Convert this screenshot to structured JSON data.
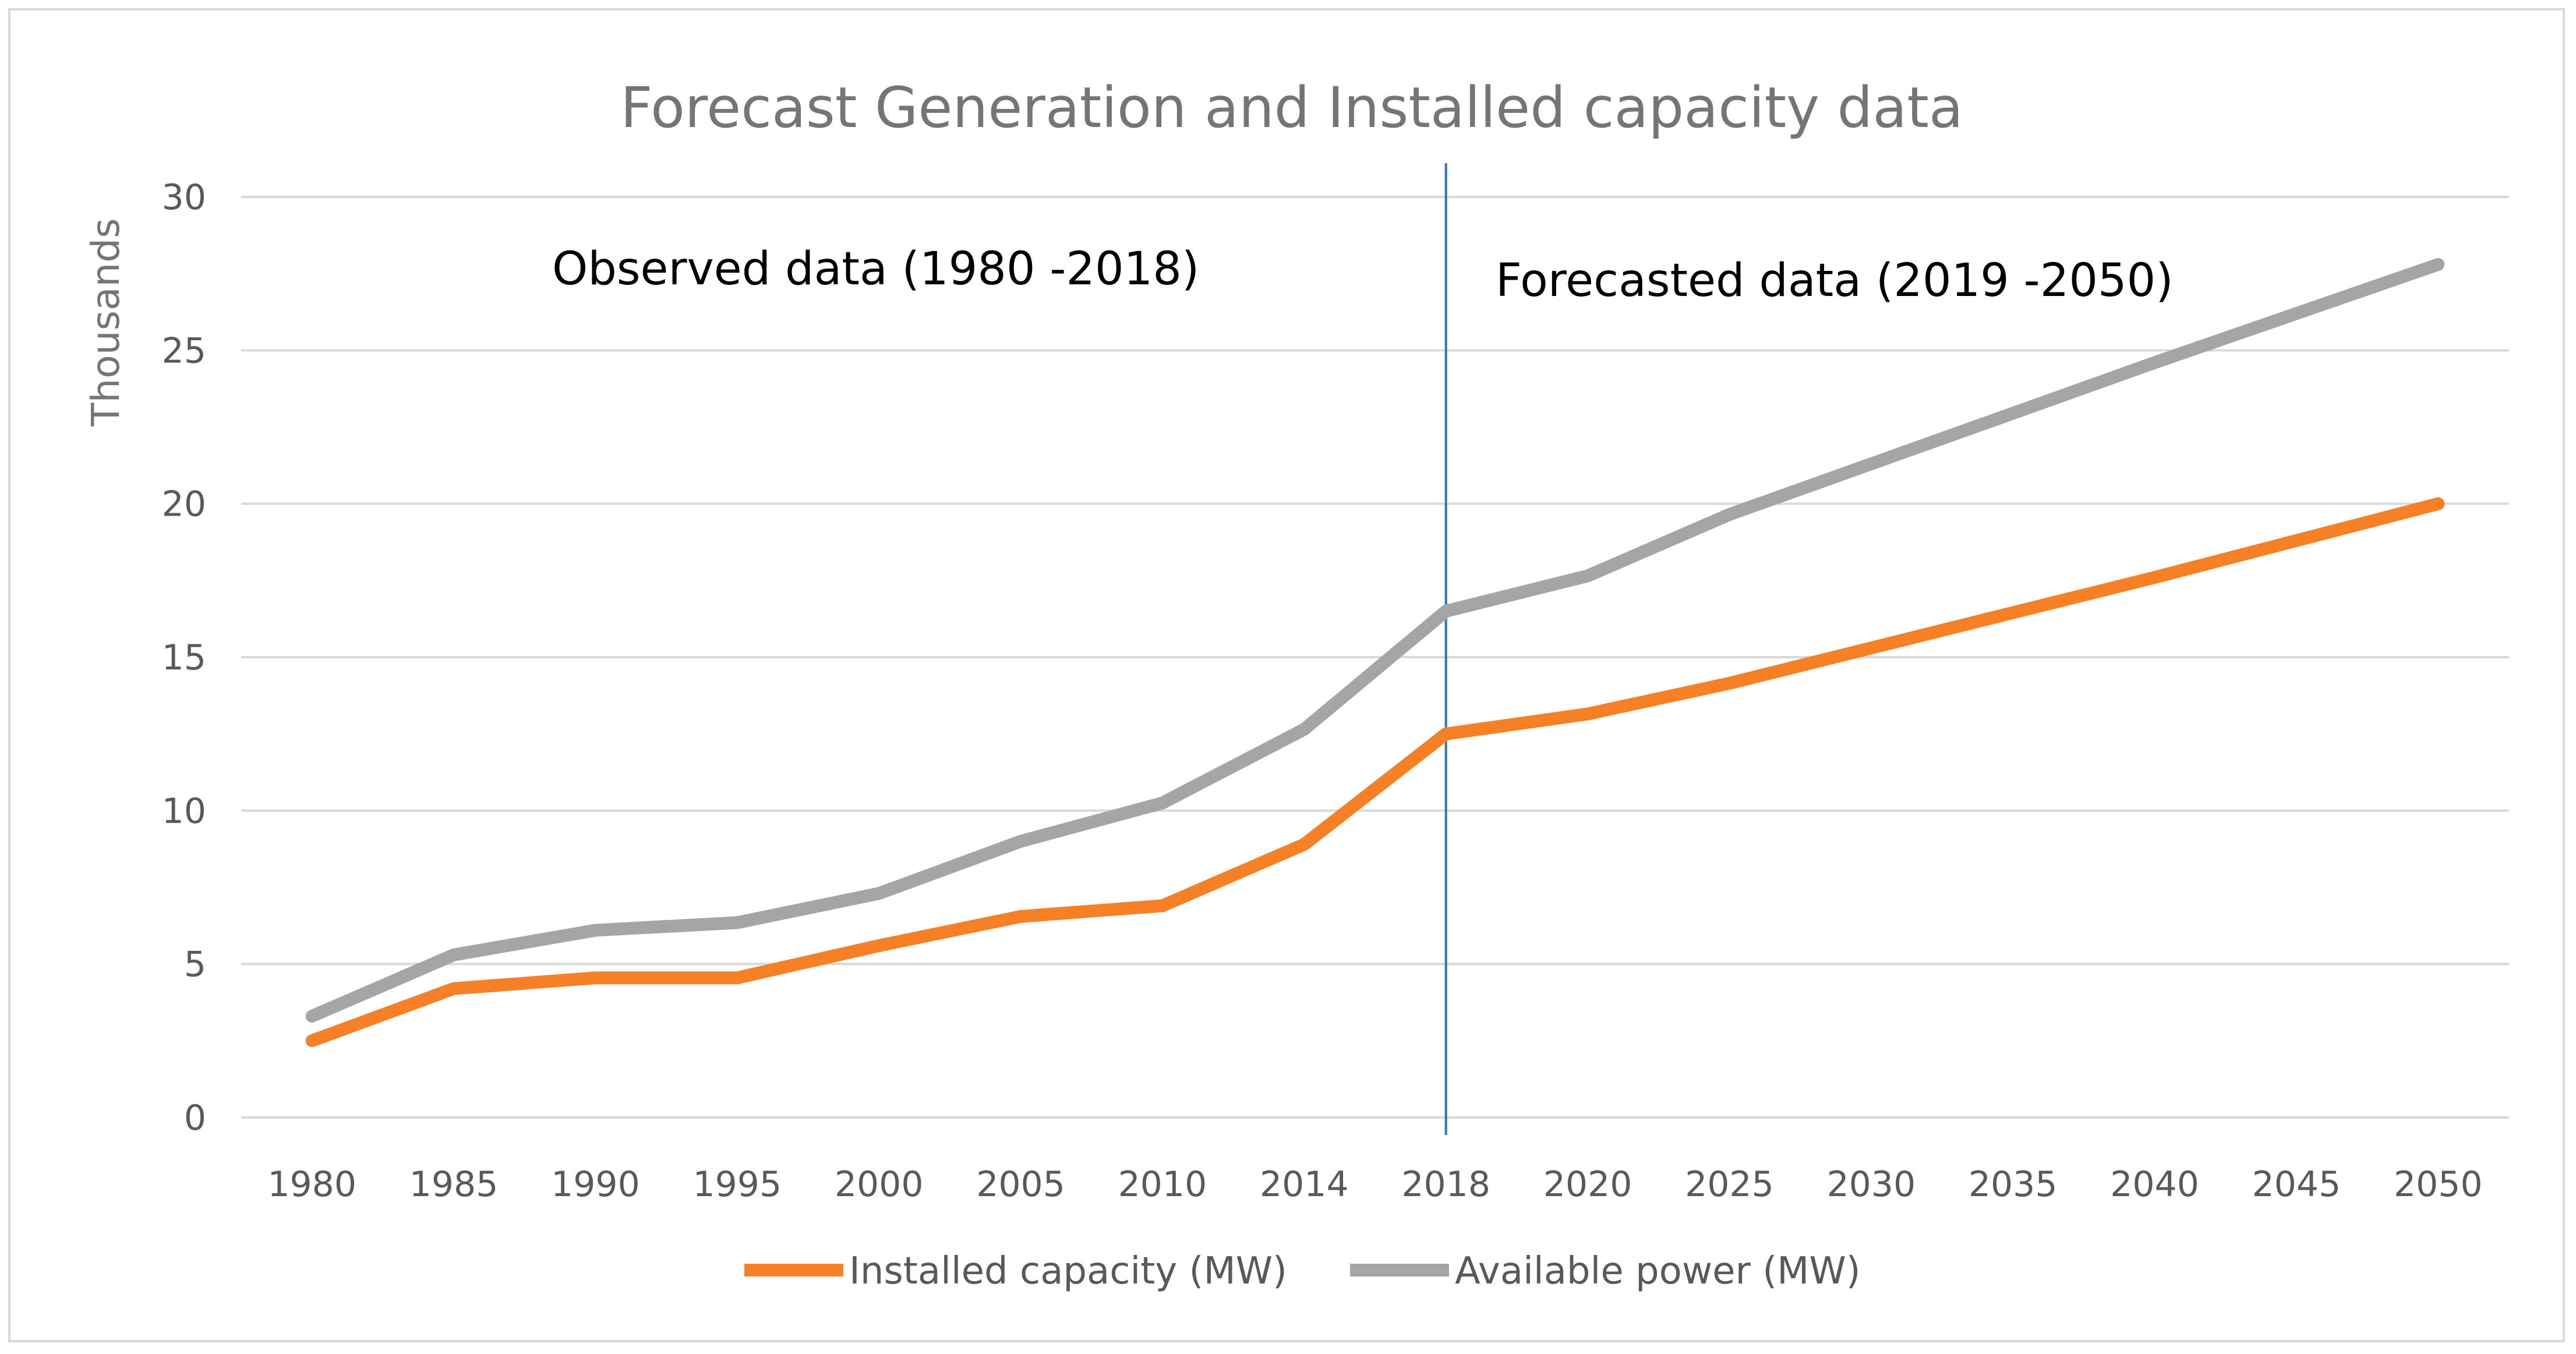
{
  "chart_data": {
    "type": "line",
    "title": "Forecast Generation and Installed capacity data",
    "ylabel": "Thousands",
    "xlabel": "",
    "ylim": [
      0,
      30
    ],
    "yticks": [
      0,
      5,
      10,
      15,
      20,
      25,
      30
    ],
    "grid": true,
    "legend_position": "bottom",
    "categories": [
      "1980",
      "1985",
      "1990",
      "1995",
      "2000",
      "2005",
      "2010",
      "2014",
      "2018",
      "2020",
      "2025",
      "2030",
      "2035",
      "2040",
      "2045",
      "2050"
    ],
    "series": [
      {
        "name": "Installed capacity (MW)",
        "color": "#f58026",
        "values": [
          2.5,
          4.2,
          4.55,
          4.55,
          5.6,
          6.55,
          6.9,
          8.9,
          12.5,
          13.15,
          14.15,
          15.3,
          16.45,
          17.6,
          18.8,
          20.0
        ]
      },
      {
        "name": "Available power (MW)",
        "color": "#a5a5a5",
        "values": [
          3.3,
          5.3,
          6.1,
          6.35,
          7.3,
          9.0,
          10.25,
          12.65,
          16.5,
          17.65,
          19.65,
          21.3,
          22.95,
          24.6,
          26.2,
          27.8
        ]
      }
    ],
    "divider": {
      "category": "2018",
      "color": "#2e75b6"
    },
    "annotations": {
      "observed": "Observed data (1980 -2018)",
      "forecast": "Forecasted data (2019 -2050)"
    }
  }
}
